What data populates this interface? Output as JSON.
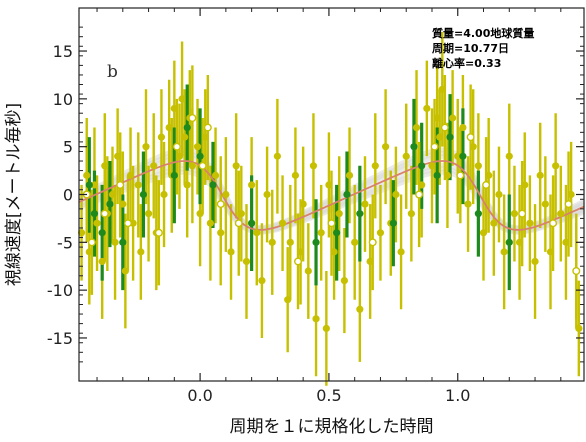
{
  "chart_data": {
    "type": "scatter",
    "panel_label": "b",
    "xlabel": "周期を１に規格化した時間",
    "ylabel": "視線速度[メートル毎秒]",
    "xlim": [
      -0.47,
      1.49
    ],
    "ylim": [
      -19.5,
      19.5
    ],
    "x_ticks": [
      0.0,
      0.5,
      1.0
    ],
    "x_tick_labels": [
      "0.0",
      "0.5",
      "1.0"
    ],
    "y_ticks": [
      -15,
      -10,
      -5,
      0,
      5,
      10,
      15
    ],
    "y_tick_labels": [
      "-15",
      "-10",
      "-5",
      "0",
      "5",
      "10",
      "15"
    ],
    "annotations": [
      "質量=4.00地球質量",
      "周期=10.77日",
      "離心率=0.33"
    ],
    "legend": null,
    "grid": false,
    "colors": {
      "yellow_series": "#c6c000",
      "green_series": "#1e8a1e",
      "model_curve": "#d9826b",
      "model_band": "#d8d8d8"
    },
    "model": {
      "semi_amplitude": 3.6,
      "eccentricity": 0.33,
      "offset": -0.1,
      "peak_phase": -0.06,
      "period_in_plot": 1.0
    },
    "series": [
      {
        "color": "yellow",
        "points": [
          [
            -0.46,
            -4,
            5
          ],
          [
            -0.44,
            2,
            6
          ],
          [
            -0.43,
            -6,
            5.5
          ],
          [
            -0.41,
            1,
            6
          ],
          [
            -0.4,
            -3,
            5
          ],
          [
            -0.38,
            -7,
            6
          ],
          [
            -0.37,
            3,
            5.5
          ],
          [
            -0.36,
            -2,
            6
          ],
          [
            -0.34,
            0,
            5
          ],
          [
            -0.33,
            -5,
            6
          ],
          [
            -0.32,
            4,
            5
          ],
          [
            -0.3,
            -1,
            5.5
          ],
          [
            -0.29,
            -8,
            6
          ],
          [
            -0.27,
            2,
            5
          ],
          [
            -0.26,
            -3,
            6
          ],
          [
            -0.24,
            1,
            5.5
          ],
          [
            -0.23,
            -6,
            5
          ],
          [
            -0.21,
            5,
            6
          ],
          [
            -0.2,
            -2,
            5
          ],
          [
            -0.18,
            3,
            5.5
          ],
          [
            -0.17,
            -4,
            6
          ],
          [
            -0.15,
            6,
            5
          ],
          [
            -0.14,
            0,
            5.5
          ],
          [
            -0.12,
            7,
            5
          ],
          [
            -0.11,
            2,
            6
          ],
          [
            -0.1,
            9,
            5
          ],
          [
            -0.08,
            4,
            5.5
          ],
          [
            -0.07,
            10,
            6
          ],
          [
            -0.06,
            6,
            5
          ],
          [
            -0.05,
            1,
            5.5
          ],
          [
            -0.04,
            8,
            5
          ],
          [
            -0.03,
            3,
            6
          ],
          [
            -0.01,
            5,
            5
          ],
          [
            0.0,
            -2,
            5.5
          ],
          [
            0.02,
            6,
            5
          ],
          [
            0.04,
            -3,
            6
          ],
          [
            0.06,
            2,
            5
          ],
          [
            0.08,
            -4,
            5.5
          ],
          [
            0.1,
            0,
            6
          ],
          [
            0.12,
            -6,
            5
          ],
          [
            0.14,
            3,
            5.5
          ],
          [
            0.16,
            -2,
            5
          ],
          [
            0.18,
            -7,
            6
          ],
          [
            0.2,
            1,
            5
          ],
          [
            0.22,
            -4,
            5.5
          ],
          [
            0.24,
            -9,
            6
          ],
          [
            0.26,
            0,
            5
          ],
          [
            0.28,
            -5,
            5.5
          ],
          [
            0.3,
            4,
            6
          ],
          [
            0.32,
            -3,
            5
          ],
          [
            0.34,
            -11,
            5.5
          ],
          [
            0.35,
            -5,
            6
          ],
          [
            0.37,
            2,
            5
          ],
          [
            0.39,
            -6,
            5.5
          ],
          [
            0.4,
            -1,
            6
          ],
          [
            0.42,
            -8,
            5
          ],
          [
            0.44,
            3,
            5.5
          ],
          [
            0.45,
            -13,
            6
          ],
          [
            0.47,
            -4,
            5
          ],
          [
            0.49,
            -14,
            6
          ],
          [
            0.5,
            1,
            5.5
          ],
          [
            0.52,
            -6,
            5
          ],
          [
            0.54,
            -2,
            6
          ],
          [
            0.56,
            -9,
            5.5
          ],
          [
            0.58,
            2,
            5
          ],
          [
            0.6,
            -5,
            6
          ],
          [
            0.62,
            -12,
            5.5
          ],
          [
            0.64,
            -1,
            5
          ],
          [
            0.66,
            -7,
            6
          ],
          [
            0.68,
            3,
            5.5
          ],
          [
            0.7,
            -4,
            5
          ],
          [
            0.72,
            5,
            6
          ],
          [
            0.74,
            -3,
            5.5
          ],
          [
            0.76,
            0,
            5
          ],
          [
            0.78,
            -6,
            6
          ],
          [
            0.8,
            4,
            5.5
          ],
          [
            0.82,
            -2,
            5
          ],
          [
            0.84,
            7,
            6
          ],
          [
            0.86,
            1,
            5.5
          ],
          [
            0.88,
            9,
            5
          ],
          [
            0.9,
            3,
            6
          ],
          [
            0.92,
            8,
            5.5
          ],
          [
            0.93,
            6,
            5
          ],
          [
            0.94,
            11,
            6
          ],
          [
            0.96,
            2,
            5.5
          ],
          [
            0.98,
            8,
            5
          ],
          [
            1.0,
            4,
            6
          ],
          [
            1.02,
            7,
            5.5
          ],
          [
            1.04,
            -1,
            5
          ],
          [
            1.06,
            5,
            6
          ],
          [
            1.08,
            3,
            5.5
          ],
          [
            1.1,
            -4,
            5
          ],
          [
            1.12,
            2,
            6
          ],
          [
            1.14,
            -3,
            5.5
          ],
          [
            1.16,
            0,
            5
          ],
          [
            1.18,
            -6,
            6
          ],
          [
            1.2,
            4,
            5.5
          ],
          [
            1.22,
            -2,
            5
          ],
          [
            1.24,
            -5,
            6
          ],
          [
            1.26,
            1,
            5.5
          ],
          [
            1.28,
            -3,
            5
          ],
          [
            1.3,
            -7,
            6
          ],
          [
            1.32,
            2,
            5.5
          ],
          [
            1.34,
            -1,
            5
          ],
          [
            1.36,
            -6,
            6
          ],
          [
            1.38,
            3,
            5.5
          ],
          [
            1.4,
            -2,
            5
          ],
          [
            1.42,
            -5,
            6
          ],
          [
            1.44,
            0,
            5.5
          ],
          [
            1.46,
            -8,
            6
          ],
          [
            1.47,
            -14,
            5
          ]
        ]
      },
      {
        "color": "green",
        "points": [
          [
            -0.43,
            1,
            5
          ],
          [
            -0.41,
            -2,
            4.5
          ],
          [
            -0.38,
            -4,
            5
          ],
          [
            -0.35,
            -1,
            4.5
          ],
          [
            -0.3,
            -5,
            5
          ],
          [
            -0.22,
            0,
            4.5
          ],
          [
            -0.1,
            2,
            5
          ],
          [
            -0.05,
            7,
            4.5
          ],
          [
            0.0,
            4,
            5
          ],
          [
            0.05,
            1,
            4.5
          ],
          [
            0.2,
            -3,
            5
          ],
          [
            0.45,
            -5,
            4.5
          ],
          [
            0.53,
            -4,
            5
          ],
          [
            0.57,
            0,
            4.5
          ],
          [
            0.62,
            -2,
            5
          ],
          [
            0.75,
            -3,
            4.5
          ],
          [
            0.83,
            5,
            5
          ],
          [
            0.86,
            3,
            4.5
          ],
          [
            0.92,
            2,
            5
          ],
          [
            0.97,
            6,
            4.5
          ],
          [
            1.02,
            4,
            5
          ],
          [
            1.08,
            -2,
            4.5
          ],
          [
            1.2,
            -5,
            5
          ]
        ]
      },
      {
        "color": "open",
        "points": [
          [
            -0.44,
            0,
            5
          ],
          [
            -0.42,
            -5,
            5.5
          ],
          [
            -0.37,
            -2,
            5
          ],
          [
            -0.31,
            1,
            5.5
          ],
          [
            -0.28,
            -3,
            5
          ],
          [
            -0.16,
            -4,
            5.5
          ],
          [
            -0.09,
            5,
            5
          ],
          [
            -0.03,
            8,
            5.5
          ],
          [
            0.01,
            3,
            5
          ],
          [
            0.03,
            7,
            5.5
          ],
          [
            0.08,
            -1,
            5
          ],
          [
            0.15,
            -3,
            5.5
          ],
          [
            0.38,
            -7,
            5
          ],
          [
            0.51,
            -3,
            5.5
          ],
          [
            0.67,
            -5,
            5
          ],
          [
            0.85,
            0,
            5.5
          ],
          [
            0.91,
            5,
            5
          ],
          [
            0.95,
            7,
            5.5
          ],
          [
            1.01,
            2,
            5
          ],
          [
            1.05,
            6,
            5.5
          ],
          [
            1.11,
            1,
            5
          ],
          [
            1.25,
            -2,
            5.5
          ],
          [
            1.37,
            -3,
            5
          ],
          [
            1.43,
            -1,
            5.5
          ],
          [
            1.46,
            -8,
            5
          ]
        ]
      }
    ]
  }
}
